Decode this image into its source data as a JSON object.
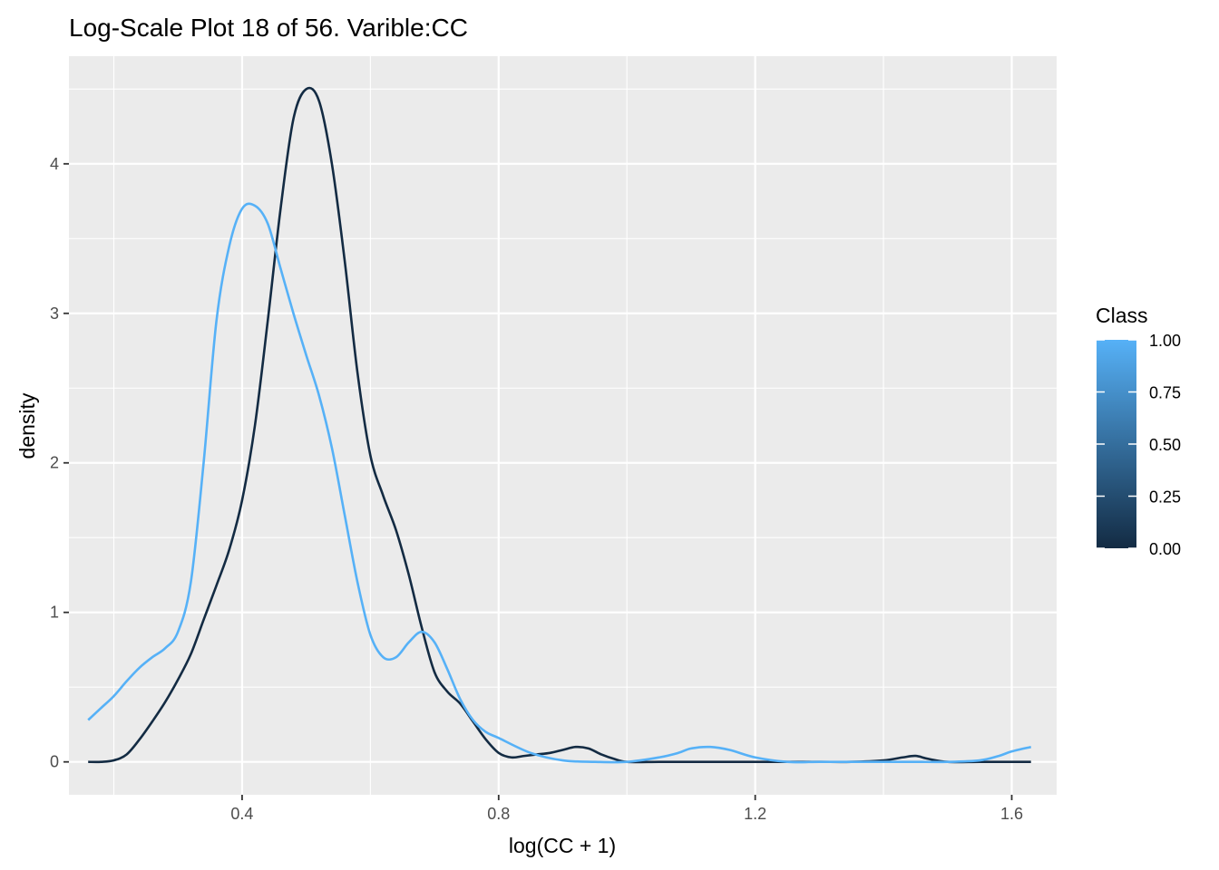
{
  "chart_data": {
    "type": "line",
    "title": "Log-Scale Plot 18 of 56. Varible:CC",
    "xlabel": "log(CC + 1)",
    "ylabel": "density",
    "xlim": [
      0.13,
      1.67
    ],
    "ylim": [
      -0.22,
      4.72
    ],
    "x_ticks": [
      0.4,
      0.8,
      1.2,
      1.6
    ],
    "x_tick_labels": [
      "0.4",
      "0.8",
      "1.2",
      "1.6"
    ],
    "y_ticks": [
      0,
      1,
      2,
      3,
      4
    ],
    "y_tick_labels": [
      "0",
      "1",
      "2",
      "3",
      "4"
    ],
    "grid": true,
    "legend": {
      "title": "Class",
      "type": "colorbar",
      "placement": "right",
      "labels": [
        "1.00",
        "0.75",
        "0.50",
        "0.25",
        "0.00"
      ],
      "values": [
        1.0,
        0.75,
        0.5,
        0.25,
        0.0
      ],
      "color_low": "#132B43",
      "color_high": "#56B1F7"
    },
    "series": [
      {
        "class_value": 0,
        "color": "#132B43",
        "x": [
          0.16,
          0.18,
          0.2,
          0.22,
          0.24,
          0.26,
          0.28,
          0.3,
          0.32,
          0.34,
          0.36,
          0.38,
          0.4,
          0.42,
          0.44,
          0.46,
          0.48,
          0.5,
          0.52,
          0.54,
          0.56,
          0.58,
          0.6,
          0.62,
          0.64,
          0.66,
          0.68,
          0.7,
          0.72,
          0.74,
          0.76,
          0.78,
          0.8,
          0.82,
          0.84,
          0.86,
          0.88,
          0.9,
          0.92,
          0.94,
          0.96,
          0.98,
          1.0,
          1.05,
          1.1,
          1.15,
          1.2,
          1.25,
          1.3,
          1.35,
          1.4,
          1.43,
          1.45,
          1.47,
          1.5,
          1.55,
          1.6,
          1.63
        ],
        "y": [
          0.0,
          0.0,
          0.01,
          0.05,
          0.15,
          0.27,
          0.4,
          0.55,
          0.72,
          0.95,
          1.18,
          1.42,
          1.75,
          2.25,
          2.95,
          3.7,
          4.3,
          4.5,
          4.42,
          4.0,
          3.35,
          2.6,
          2.05,
          1.78,
          1.55,
          1.25,
          0.9,
          0.6,
          0.47,
          0.39,
          0.27,
          0.15,
          0.06,
          0.03,
          0.04,
          0.05,
          0.06,
          0.08,
          0.1,
          0.09,
          0.05,
          0.02,
          0.0,
          0.0,
          0.0,
          0.0,
          0.0,
          0.0,
          0.0,
          0.0,
          0.01,
          0.03,
          0.04,
          0.02,
          0.0,
          0.0,
          0.0,
          0.0
        ]
      },
      {
        "class_value": 1,
        "color": "#56B1F7",
        "x": [
          0.16,
          0.18,
          0.2,
          0.22,
          0.24,
          0.26,
          0.28,
          0.3,
          0.32,
          0.34,
          0.36,
          0.38,
          0.4,
          0.42,
          0.44,
          0.46,
          0.48,
          0.5,
          0.52,
          0.54,
          0.56,
          0.58,
          0.6,
          0.62,
          0.64,
          0.66,
          0.68,
          0.7,
          0.72,
          0.74,
          0.76,
          0.78,
          0.8,
          0.85,
          0.9,
          0.95,
          1.0,
          1.05,
          1.08,
          1.1,
          1.13,
          1.16,
          1.2,
          1.25,
          1.3,
          1.35,
          1.4,
          1.45,
          1.5,
          1.55,
          1.58,
          1.6,
          1.63
        ],
        "y": [
          0.28,
          0.36,
          0.44,
          0.54,
          0.63,
          0.7,
          0.76,
          0.87,
          1.2,
          2.0,
          2.95,
          3.45,
          3.7,
          3.72,
          3.6,
          3.3,
          3.0,
          2.72,
          2.45,
          2.1,
          1.65,
          1.2,
          0.85,
          0.7,
          0.7,
          0.8,
          0.87,
          0.8,
          0.62,
          0.42,
          0.28,
          0.2,
          0.16,
          0.06,
          0.01,
          0.0,
          0.0,
          0.03,
          0.06,
          0.09,
          0.1,
          0.08,
          0.03,
          0.0,
          0.0,
          0.0,
          0.0,
          0.0,
          0.0,
          0.01,
          0.04,
          0.07,
          0.1
        ]
      }
    ]
  }
}
